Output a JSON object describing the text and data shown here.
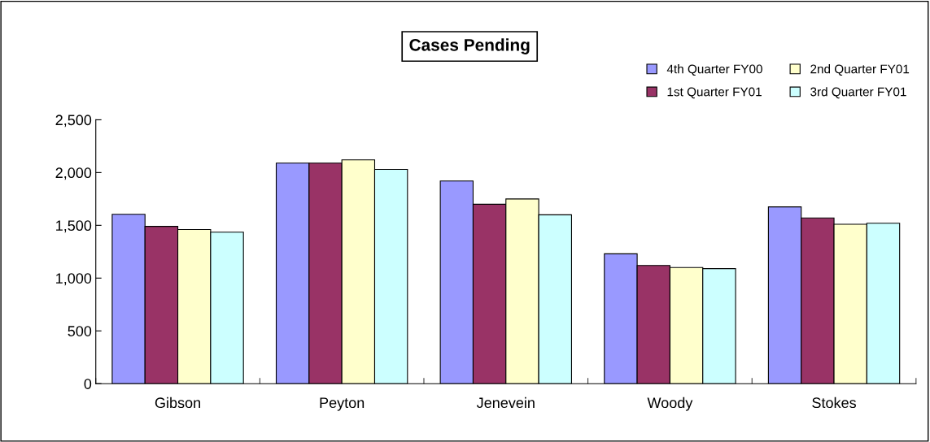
{
  "chart_data": {
    "type": "bar",
    "title": "Cases Pending",
    "categories": [
      "Gibson",
      "Peyton",
      "Jenevein",
      "Woody",
      "Stokes"
    ],
    "series": [
      {
        "name": "4th Quarter FY00",
        "color": "#9999ff",
        "values": [
          1605,
          2090,
          1920,
          1230,
          1675
        ]
      },
      {
        "name": "1st Quarter FY01",
        "color": "#993366",
        "values": [
          1490,
          2090,
          1700,
          1120,
          1570
        ]
      },
      {
        "name": "2nd Quarter FY01",
        "color": "#ffffcc",
        "values": [
          1460,
          2120,
          1750,
          1100,
          1510
        ]
      },
      {
        "name": "3rd Quarter FY01",
        "color": "#ccffff",
        "values": [
          1435,
          2030,
          1600,
          1090,
          1520
        ]
      }
    ],
    "ylim": [
      0,
      2500
    ],
    "yticks": [
      {
        "value": 0,
        "label": "0"
      },
      {
        "value": 500,
        "label": "500"
      },
      {
        "value": 1000,
        "label": "1,000"
      },
      {
        "value": 1500,
        "label": "1,500"
      },
      {
        "value": 2000,
        "label": "2,000"
      },
      {
        "value": 2500,
        "label": "2,500"
      }
    ],
    "grid": false,
    "legend": "top right"
  }
}
